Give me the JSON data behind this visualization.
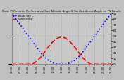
{
  "title": "Solar PV/Inverter Performance Sun Altitude Angle & Sun Incidence Angle on PV Panels",
  "legend1": "Altitude (deg) ---",
  "legend2": "Incidence (deg)",
  "bg_color": "#c0c0c0",
  "plot_bg_color": "#c8c8c8",
  "grid_color": "#888888",
  "blue_color": "#0000ff",
  "red_color": "#ff0000",
  "title_color": "#000000",
  "tick_color": "#000000",
  "x_hours": [
    0,
    1,
    2,
    3,
    4,
    5,
    6,
    7,
    8,
    9,
    10,
    11,
    12,
    13,
    14,
    15,
    16,
    17,
    18,
    19,
    20,
    21,
    22,
    23,
    24
  ],
  "altitude_vals": [
    90,
    80,
    70,
    60,
    50,
    40,
    30,
    20,
    12,
    6,
    2,
    0,
    0,
    0,
    2,
    6,
    12,
    20,
    30,
    40,
    50,
    60,
    70,
    80,
    90
  ],
  "incidence_vals": [
    0,
    0,
    0,
    0,
    0,
    0,
    5,
    12,
    22,
    32,
    40,
    46,
    48,
    46,
    40,
    32,
    22,
    12,
    5,
    0,
    0,
    0,
    0,
    0,
    0
  ],
  "ylim": [
    0,
    90
  ],
  "right_ticks": [
    0,
    10,
    20,
    30,
    40,
    50,
    60,
    70,
    80,
    90
  ],
  "x_tick_labels": [
    "00:00",
    "02:00",
    "04:00",
    "06:00",
    "08:00",
    "10:00",
    "12:00",
    "14:00",
    "16:00",
    "18:00",
    "20:00",
    "22:00",
    "24:00"
  ],
  "x_tick_positions": [
    0,
    2,
    4,
    6,
    8,
    10,
    12,
    14,
    16,
    18,
    20,
    22,
    24
  ]
}
